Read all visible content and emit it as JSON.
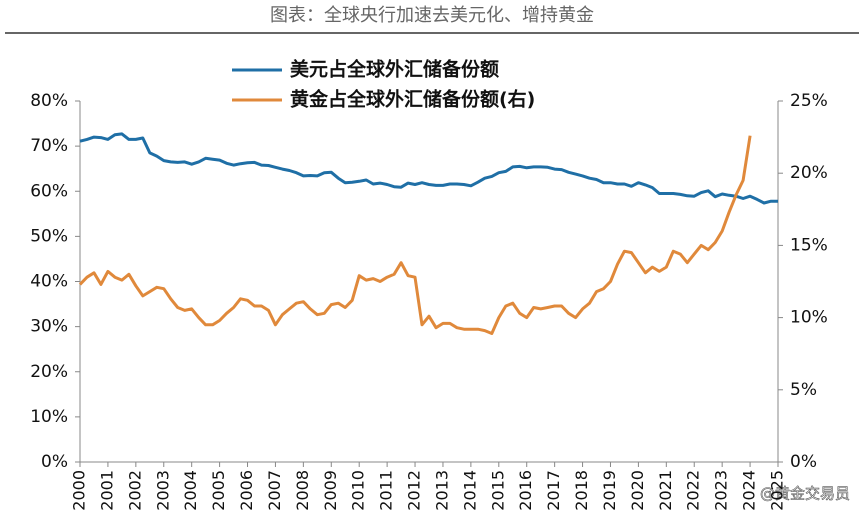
{
  "chart_data": {
    "type": "line",
    "title": "图表：全球央行加速去美元化、增持黄金",
    "annotation": "@黄金交易员",
    "xlim": [
      2000,
      2025
    ],
    "xticks": [
      2000,
      2001,
      2002,
      2003,
      2004,
      2005,
      2006,
      2007,
      2008,
      2009,
      2010,
      2011,
      2012,
      2013,
      2014,
      2015,
      2016,
      2017,
      2018,
      2019,
      2020,
      2021,
      2022,
      2023,
      2024,
      2025
    ],
    "ylim": [
      0,
      80
    ],
    "yticks": [
      {
        "value": 0,
        "label": "0%"
      },
      {
        "value": 10,
        "label": "10%"
      },
      {
        "value": 20,
        "label": "20%"
      },
      {
        "value": 30,
        "label": "30%"
      },
      {
        "value": 40,
        "label": "40%"
      },
      {
        "value": 50,
        "label": "50%"
      },
      {
        "value": 60,
        "label": "60%"
      },
      {
        "value": 70,
        "label": "70%"
      },
      {
        "value": 80,
        "label": "80%"
      }
    ],
    "y2lim": [
      0,
      25
    ],
    "y2ticks": [
      {
        "value": 0,
        "label": "0%"
      },
      {
        "value": 5,
        "label": "5%"
      },
      {
        "value": 10,
        "label": "10%"
      },
      {
        "value": 15,
        "label": "15%"
      },
      {
        "value": 20,
        "label": "20%"
      },
      {
        "value": 25,
        "label": "25%"
      }
    ],
    "series": [
      {
        "name": "美元占全球外汇储备份额",
        "color": "#1f6fa6",
        "x": [
          2000,
          2000.25,
          2000.5,
          2000.75,
          2001,
          2001.25,
          2001.5,
          2001.75,
          2002,
          2002.25,
          2002.5,
          2002.75,
          2003,
          2003.25,
          2003.5,
          2003.75,
          2004,
          2004.25,
          2004.5,
          2004.75,
          2005,
          2005.25,
          2005.5,
          2005.75,
          2006,
          2006.25,
          2006.5,
          2006.75,
          2007,
          2007.25,
          2007.5,
          2007.75,
          2008,
          2008.25,
          2008.5,
          2008.75,
          2009,
          2009.25,
          2009.5,
          2009.75,
          2010,
          2010.25,
          2010.5,
          2010.75,
          2011,
          2011.25,
          2011.5,
          2011.75,
          2012,
          2012.25,
          2012.5,
          2012.75,
          2013,
          2013.25,
          2013.5,
          2013.75,
          2014,
          2014.25,
          2014.5,
          2014.75,
          2015,
          2015.25,
          2015.5,
          2015.75,
          2016,
          2016.25,
          2016.5,
          2016.75,
          2017,
          2017.25,
          2017.5,
          2017.75,
          2018,
          2018.25,
          2018.5,
          2018.75,
          2019,
          2019.25,
          2019.5,
          2019.75,
          2020,
          2020.25,
          2020.5,
          2020.75,
          2021,
          2021.25,
          2021.5,
          2021.75,
          2022,
          2022.25,
          2022.5,
          2022.75,
          2023,
          2023.25,
          2023.5,
          2023.75,
          2024,
          2024.25,
          2024.5,
          2024.75,
          2025
        ],
        "values": [
          71.1,
          71.5,
          72.0,
          71.9,
          71.5,
          72.5,
          72.7,
          71.5,
          71.5,
          71.8,
          68.5,
          67.8,
          66.8,
          66.5,
          66.4,
          66.5,
          66.0,
          66.5,
          67.3,
          67.1,
          66.9,
          66.2,
          65.8,
          66.1,
          66.3,
          66.4,
          65.8,
          65.7,
          65.3,
          64.9,
          64.6,
          64.1,
          63.4,
          63.5,
          63.4,
          64.1,
          64.2,
          62.9,
          61.9,
          62.0,
          62.2,
          62.5,
          61.6,
          61.8,
          61.5,
          61.0,
          60.9,
          61.8,
          61.5,
          61.9,
          61.5,
          61.3,
          61.3,
          61.6,
          61.6,
          61.5,
          61.2,
          62.0,
          62.9,
          63.3,
          64.1,
          64.4,
          65.4,
          65.5,
          65.2,
          65.4,
          65.4,
          65.3,
          64.9,
          64.8,
          64.2,
          63.8,
          63.4,
          62.9,
          62.6,
          61.9,
          61.9,
          61.6,
          61.6,
          61.1,
          61.9,
          61.4,
          60.8,
          59.5,
          59.5,
          59.5,
          59.3,
          59.0,
          58.9,
          59.7,
          60.1,
          58.8,
          59.4,
          59.1,
          58.9,
          58.4,
          58.9,
          58.2,
          57.4,
          57.8,
          57.8
        ]
      },
      {
        "name": "黄金占全球外汇储备份额(右)",
        "color": "#e0893b",
        "axis": "y2",
        "x": [
          2000,
          2000.25,
          2000.5,
          2000.75,
          2001,
          2001.25,
          2001.5,
          2001.75,
          2002,
          2002.25,
          2002.5,
          2002.75,
          2003,
          2003.25,
          2003.5,
          2003.75,
          2004,
          2004.25,
          2004.5,
          2004.75,
          2005,
          2005.25,
          2005.5,
          2005.75,
          2006,
          2006.25,
          2006.5,
          2006.75,
          2007,
          2007.25,
          2007.5,
          2007.75,
          2008,
          2008.25,
          2008.5,
          2008.75,
          2009,
          2009.25,
          2009.5,
          2009.75,
          2010,
          2010.25,
          2010.5,
          2010.75,
          2011,
          2011.25,
          2011.5,
          2011.75,
          2012,
          2012.25,
          2012.5,
          2012.75,
          2013,
          2013.25,
          2013.5,
          2013.75,
          2014,
          2014.25,
          2014.5,
          2014.75,
          2015,
          2015.25,
          2015.5,
          2015.75,
          2016,
          2016.25,
          2016.5,
          2016.75,
          2017,
          2017.25,
          2017.5,
          2017.75,
          2018,
          2018.25,
          2018.5,
          2018.75,
          2019,
          2019.25,
          2019.5,
          2019.75,
          2020,
          2020.25,
          2020.5,
          2020.75,
          2021,
          2021.25,
          2021.5,
          2021.75,
          2022,
          2022.25,
          2022.5,
          2022.75,
          2023,
          2023.25,
          2023.5,
          2023.75,
          2024
        ],
        "values": [
          12.3,
          12.8,
          13.1,
          12.3,
          13.2,
          12.8,
          12.6,
          13.0,
          12.2,
          11.5,
          11.8,
          12.1,
          12.0,
          11.3,
          10.7,
          10.5,
          10.6,
          10.0,
          9.5,
          9.5,
          9.8,
          10.3,
          10.7,
          11.3,
          11.2,
          10.8,
          10.8,
          10.5,
          9.5,
          10.2,
          10.6,
          11.0,
          11.1,
          10.6,
          10.2,
          10.3,
          10.9,
          11.0,
          10.7,
          11.2,
          12.9,
          12.6,
          12.7,
          12.5,
          12.8,
          13.0,
          13.8,
          12.9,
          12.8,
          9.5,
          10.1,
          9.3,
          9.6,
          9.6,
          9.3,
          9.2,
          9.2,
          9.2,
          9.1,
          8.9,
          10.0,
          10.8,
          11.0,
          10.3,
          10.0,
          10.7,
          10.6,
          10.7,
          10.8,
          10.8,
          10.3,
          10.0,
          10.6,
          11.0,
          11.8,
          12.0,
          12.5,
          13.7,
          14.6,
          14.5,
          13.8,
          13.1,
          13.5,
          13.2,
          13.5,
          14.6,
          14.4,
          13.8,
          14.4,
          15.0,
          14.7,
          15.2,
          16.0,
          17.3,
          18.5,
          19.5,
          22.6
        ]
      }
    ]
  }
}
